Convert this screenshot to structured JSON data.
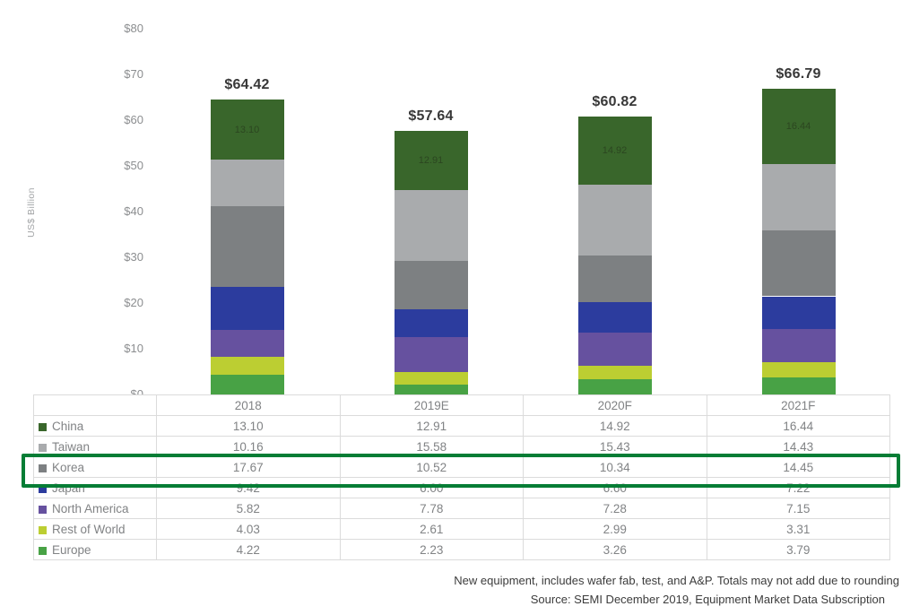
{
  "chart_data": {
    "type": "bar",
    "stacked": true,
    "ylabel": "US$ Billion",
    "ylim": [
      0,
      80
    ],
    "ytick_step": 10,
    "ytick_prefix": "$",
    "grid": false,
    "legend_position": "table-left-column",
    "categories": [
      "2018",
      "2019E",
      "2020F",
      "2021F"
    ],
    "totals": [
      64.42,
      57.64,
      60.82,
      66.79
    ],
    "totals_display": [
      "$64.42",
      "$57.64",
      "$60.82",
      "$66.79"
    ],
    "series": [
      {
        "name": "China",
        "color": "#39662b",
        "values": [
          13.1,
          12.91,
          14.92,
          16.44
        ],
        "in_bar_labels": true
      },
      {
        "name": "Taiwan",
        "color": "#a9abad",
        "values": [
          10.16,
          15.58,
          15.43,
          14.43
        ]
      },
      {
        "name": "Korea",
        "color": "#7d8082",
        "values": [
          17.67,
          10.52,
          10.34,
          14.45
        ]
      },
      {
        "name": "Japan",
        "color": "#2c3c9e",
        "values": [
          9.42,
          6.0,
          6.6,
          7.22
        ]
      },
      {
        "name": "North America",
        "color": "#66519f",
        "values": [
          5.82,
          7.78,
          7.28,
          7.15
        ]
      },
      {
        "name": "Rest of World",
        "color": "#bcce32",
        "values": [
          4.03,
          2.61,
          2.99,
          3.31
        ]
      },
      {
        "name": "Europe",
        "color": "#48a245",
        "values": [
          4.22,
          2.23,
          3.26,
          3.79
        ]
      }
    ]
  },
  "highlight": {
    "row": "Korea",
    "color": "#067d35"
  },
  "footnotes": [
    "New equipment, includes wafer fab, test, and A&P. Totals may not add due to rounding",
    "Source: SEMI December 2019, Equipment Market Data Subscription"
  ]
}
